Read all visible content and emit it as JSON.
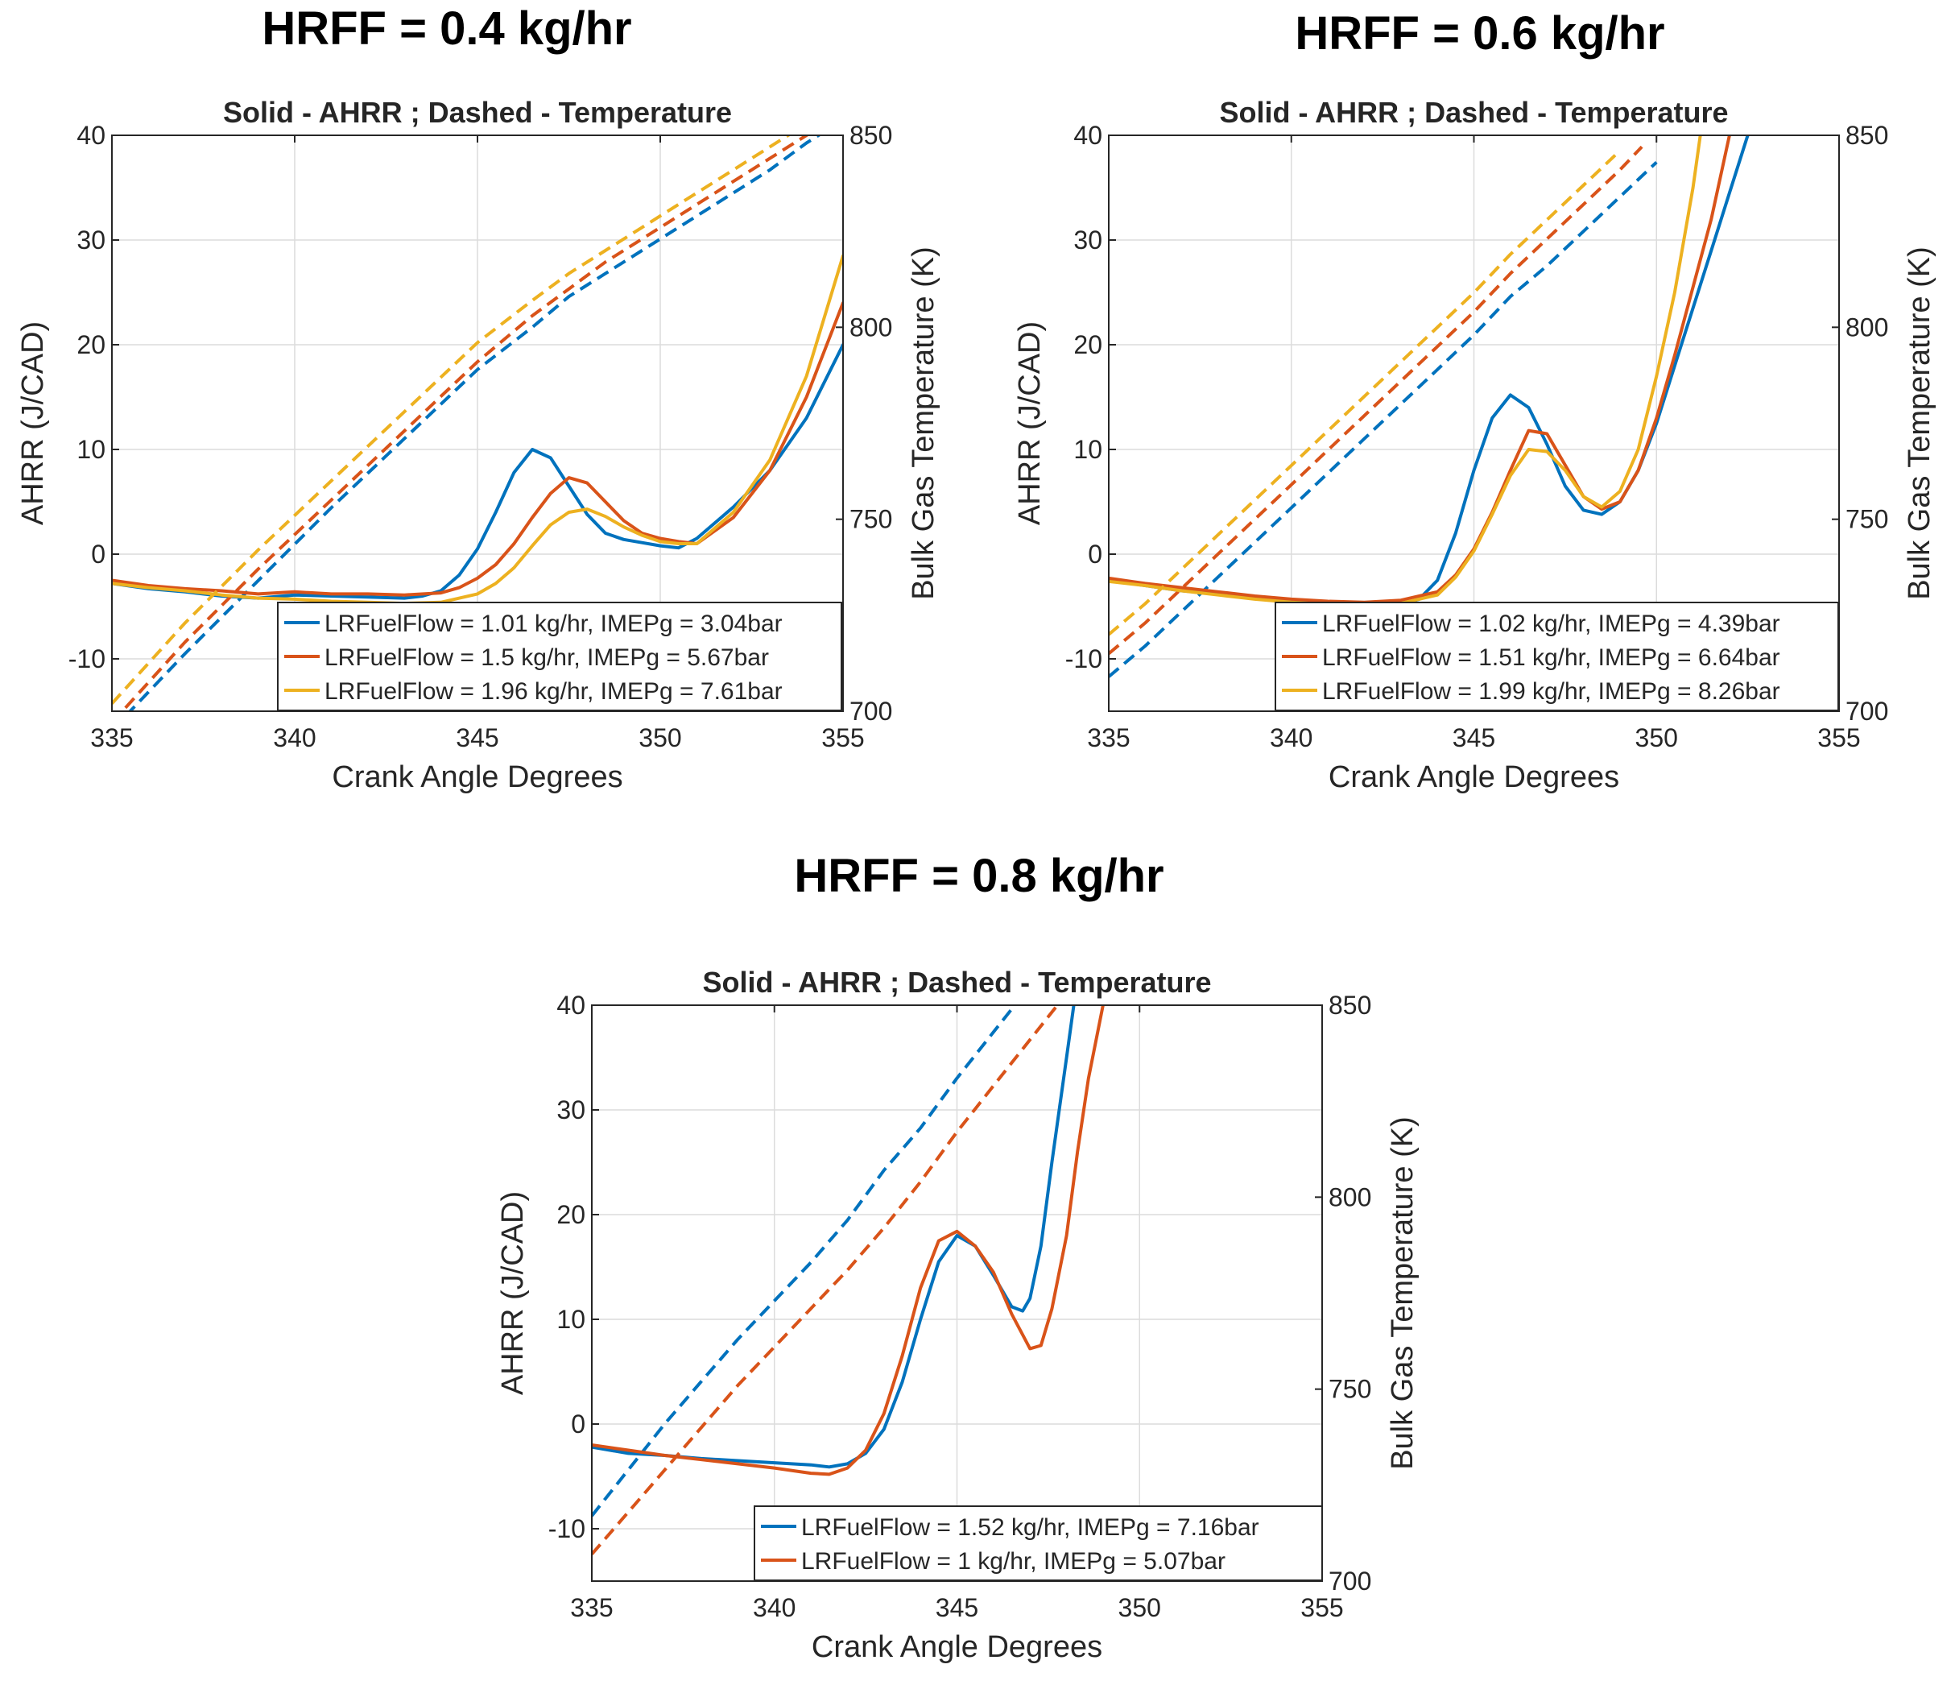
{
  "headings": [
    "HRFF = 0.4 kg/hr",
    "HRFF = 0.6 kg/hr",
    "HRFF = 0.8 kg/hr"
  ],
  "colors": {
    "blue": "#0072BD",
    "orange": "#D95319",
    "yellow": "#EDB120"
  },
  "chart_data": [
    {
      "type": "line",
      "title": "Solid - AHRR ; Dashed - Temperature",
      "xlabel": "Crank Angle Degrees",
      "ylabel": "AHRR (J/CAD)",
      "y2label": "Bulk Gas Temperature (K)",
      "xlim": [
        335,
        355
      ],
      "ylim": [
        -15,
        40
      ],
      "y2lim": [
        700,
        850
      ],
      "xticks": [
        335,
        340,
        345,
        350,
        355
      ],
      "yticks": [
        -10,
        0,
        10,
        20,
        30,
        40
      ],
      "y2ticks": [
        700,
        750,
        800,
        850
      ],
      "grid": true,
      "legend_position": "bottom-right",
      "series": [
        {
          "name": "LRFuelFlow = 1.01 kg/hr, IMEPg = 3.04bar",
          "color": "blue",
          "ahrr": {
            "x": [
              335,
              336,
              337,
              338,
              339,
              340,
              341,
              342,
              343,
              343.5,
              344,
              344.5,
              345,
              345.5,
              346,
              346.5,
              347,
              347.5,
              348,
              348.5,
              349,
              349.5,
              350,
              350.5,
              351,
              352,
              353,
              354,
              355
            ],
            "y": [
              -2.8,
              -3.3,
              -3.6,
              -4,
              -4.2,
              -3.9,
              -4,
              -4.1,
              -4.2,
              -4,
              -3.5,
              -2,
              0.5,
              4,
              7.8,
              10,
              9.2,
              6.5,
              3.8,
              2,
              1.4,
              1.1,
              0.8,
              0.6,
              1.5,
              4.5,
              8,
              13,
              20
            ]
          },
          "temp": {
            "x": [
              335,
              337,
              339,
              341,
              343,
              345,
              346.5,
              347.5,
              348.5,
              349.5,
              350.5,
              351,
              352,
              353,
              354,
              355
            ],
            "y": [
              695,
              715,
              734,
              753,
              771,
              789,
              800,
              808,
              814,
              820,
              826,
              829,
              835,
              841,
              848,
              854
            ]
          }
        },
        {
          "name": "LRFuelFlow = 1.5 kg/hr, IMEPg = 5.67bar",
          "color": "orange",
          "ahrr": {
            "x": [
              335,
              336,
              337,
              338,
              339,
              340,
              341,
              342,
              343,
              344,
              344.5,
              345,
              345.5,
              346,
              346.5,
              347,
              347.5,
              348,
              348.5,
              349,
              349.5,
              350,
              350.5,
              351,
              352,
              353,
              354,
              355
            ],
            "y": [
              -2.5,
              -3,
              -3.3,
              -3.5,
              -3.8,
              -3.6,
              -3.8,
              -3.8,
              -3.9,
              -3.7,
              -3.2,
              -2.3,
              -1,
              1,
              3.5,
              5.8,
              7.3,
              6.8,
              5,
              3.2,
              2,
              1.5,
              1.2,
              1,
              3.5,
              8,
              15,
              24
            ]
          },
          "temp": {
            "x": [
              335,
              337,
              339,
              341,
              343,
              345,
              346.5,
              347.5,
              348.5,
              349.5,
              350.5,
              351,
              352,
              353,
              354,
              355
            ],
            "y": [
              697,
              718,
              737,
              755,
              773,
              791,
              803,
              810,
              817,
              823,
              829,
              832,
              838,
              844,
              850,
              856
            ]
          }
        },
        {
          "name": "LRFuelFlow = 1.96 kg/hr, IMEPg = 7.61bar",
          "color": "yellow",
          "ahrr": {
            "x": [
              335,
              336,
              337,
              338,
              339,
              340,
              341,
              342,
              343,
              344,
              345,
              345.5,
              346,
              346.5,
              347,
              347.5,
              348,
              348.5,
              349,
              349.5,
              350,
              350.5,
              351,
              352,
              353,
              354,
              355
            ],
            "y": [
              -2.8,
              -3.2,
              -3.5,
              -3.9,
              -4.2,
              -4.3,
              -4.5,
              -4.6,
              -4.7,
              -4.6,
              -3.8,
              -2.8,
              -1.3,
              0.8,
              2.8,
              4,
              4.3,
              3.6,
              2.6,
              1.8,
              1.2,
              1,
              1,
              4,
              9,
              17,
              28.5
            ]
          },
          "temp": {
            "x": [
              335,
              337,
              339,
              341,
              343,
              345,
              346.5,
              347.5,
              348.5,
              349.5,
              350.5,
              351,
              352,
              353,
              354,
              355
            ],
            "y": [
              702,
              723,
              742,
              760,
              778,
              796,
              807,
              814,
              820,
              826,
              832,
              835,
              841,
              847,
              853,
              859
            ]
          }
        }
      ]
    },
    {
      "type": "line",
      "title": "Solid - AHRR ; Dashed - Temperature",
      "xlabel": "Crank Angle Degrees",
      "ylabel": "AHRR (J/CAD)",
      "y2label": "Bulk Gas Temperature (K)",
      "xlim": [
        335,
        355
      ],
      "ylim": [
        -15,
        40
      ],
      "y2lim": [
        700,
        850
      ],
      "xticks": [
        335,
        340,
        345,
        350,
        355
      ],
      "yticks": [
        -10,
        0,
        10,
        20,
        30,
        40
      ],
      "y2ticks": [
        700,
        750,
        800,
        850
      ],
      "grid": true,
      "legend_position": "bottom-right",
      "series": [
        {
          "name": "LRFuelFlow = 1.02 kg/hr, IMEPg = 4.39bar",
          "color": "blue",
          "ahrr": {
            "x": [
              335,
              336,
              337,
              338,
              339,
              340,
              341,
              342,
              343,
              343.5,
              344,
              344.5,
              345,
              345.5,
              346,
              346.5,
              347,
              347.5,
              348,
              348.5,
              349,
              349.5,
              350,
              350.5,
              351,
              351.5,
              352,
              352.5
            ],
            "y": [
              -2.5,
              -3,
              -3.5,
              -3.8,
              -4.2,
              -4.5,
              -4.7,
              -4.8,
              -4.8,
              -4.3,
              -2.5,
              2,
              8,
              13,
              15.2,
              14,
              10.5,
              6.5,
              4.2,
              3.8,
              5,
              8,
              12.5,
              18,
              23.5,
              29,
              34.5,
              40
            ]
          },
          "temp": {
            "x": [
              335,
              336,
              337,
              338,
              339,
              340,
              341,
              342,
              343,
              344,
              345,
              345.5,
              346,
              347,
              348,
              349,
              350
            ],
            "y": [
              709,
              717,
              726,
              735,
              744,
              753,
              762,
              771,
              780,
              789,
              798,
              803,
              808,
              816,
              825,
              834,
              843
            ]
          }
        },
        {
          "name": "LRFuelFlow = 1.51 kg/hr, IMEPg = 6.64bar",
          "color": "orange",
          "ahrr": {
            "x": [
              335,
              336,
              337,
              338,
              339,
              340,
              341,
              342,
              343,
              344,
              344.5,
              345,
              345.5,
              346,
              346.5,
              347,
              347.5,
              348,
              348.5,
              349,
              349.5,
              350,
              350.5,
              351,
              351.5,
              352
            ],
            "y": [
              -2.3,
              -2.8,
              -3.2,
              -3.6,
              -4,
              -4.3,
              -4.5,
              -4.6,
              -4.4,
              -3.6,
              -2,
              0.5,
              4,
              8,
              11.8,
              11.5,
              8.5,
              5.5,
              4.3,
              5,
              8,
              13,
              19,
              25.5,
              32,
              40
            ]
          },
          "temp": {
            "x": [
              335,
              336,
              337,
              338,
              339,
              340,
              341,
              342,
              343,
              344,
              345,
              345.5,
              346,
              347,
              348,
              349,
              349.6
            ],
            "y": [
              715,
              723,
              732,
              741,
              750,
              759,
              768,
              777,
              786,
              795,
              804,
              809,
              814,
              823,
              832,
              841,
              847
            ]
          }
        },
        {
          "name": "LRFuelFlow = 1.99 kg/hr, IMEPg = 8.26bar",
          "color": "yellow",
          "ahrr": {
            "x": [
              335,
              336,
              337,
              338,
              339,
              340,
              341,
              342,
              343,
              344,
              344.5,
              345,
              345.5,
              346,
              346.5,
              347,
              347.5,
              348,
              348.5,
              349,
              349.5,
              350,
              350.5,
              351,
              351.2
            ],
            "y": [
              -2.6,
              -3,
              -3.5,
              -3.9,
              -4.3,
              -4.6,
              -4.8,
              -4.9,
              -4.7,
              -3.9,
              -2.2,
              0.3,
              3.8,
              7.5,
              10,
              9.8,
              8,
              5.5,
              4.5,
              6,
              10,
              17,
              25,
              35,
              40
            ]
          },
          "temp": {
            "x": [
              335,
              336,
              337,
              338,
              339,
              340,
              341,
              342,
              343,
              344,
              345,
              345.5,
              346,
              347,
              348,
              349
            ],
            "y": [
              720,
              728,
              737,
              746,
              755,
              764,
              773,
              782,
              791,
              800,
              809,
              814,
              819,
              828,
              837,
              846
            ]
          }
        }
      ]
    },
    {
      "type": "line",
      "title": "Solid - AHRR ; Dashed - Temperature",
      "xlabel": "Crank Angle Degrees",
      "ylabel": "AHRR (J/CAD)",
      "y2label": "Bulk Gas Temperature (K)",
      "xlim": [
        335,
        355
      ],
      "ylim": [
        -15,
        40
      ],
      "y2lim": [
        700,
        850
      ],
      "xticks": [
        335,
        340,
        345,
        350,
        355
      ],
      "yticks": [
        -10,
        0,
        10,
        20,
        30,
        40
      ],
      "y2ticks": [
        700,
        750,
        800,
        850
      ],
      "grid": true,
      "legend_position": "bottom-right",
      "series": [
        {
          "name": "LRFuelFlow = 1.52 kg/hr, IMEPg = 7.16bar",
          "color": "blue",
          "ahrr": {
            "x": [
              335,
              336,
              337,
              338,
              339,
              340,
              341,
              341.5,
              342,
              342.5,
              343,
              343.5,
              344,
              344.5,
              345,
              345.5,
              346,
              346.5,
              346.8,
              347,
              347.3,
              347.6,
              348,
              348.2
            ],
            "y": [
              -2.2,
              -2.8,
              -3,
              -3.3,
              -3.5,
              -3.7,
              -3.9,
              -4.1,
              -3.8,
              -2.8,
              -0.5,
              4,
              10,
              15.5,
              18,
              17,
              14.2,
              11.2,
              10.8,
              12,
              17,
              25,
              35,
              40
            ]
          },
          "temp": {
            "x": [
              335,
              336,
              337,
              338,
              339,
              340,
              341,
              342,
              343,
              344,
              345,
              345.5,
              346,
              346.5,
              346.8
            ],
            "y": [
              717,
              729,
              741,
              752,
              763,
              773,
              783,
              794,
              807,
              818,
              831,
              837,
              843,
              849,
              852
            ]
          }
        },
        {
          "name": "LRFuelFlow = 1 kg/hr, IMEPg = 5.07bar",
          "color": "orange",
          "ahrr": {
            "x": [
              335,
              336,
              337,
              338,
              339,
              340,
              341,
              341.5,
              342,
              342.5,
              343,
              343.5,
              344,
              344.5,
              345,
              345.5,
              346,
              346.5,
              347,
              347.3,
              347.6,
              348,
              348.3,
              348.6,
              349
            ],
            "y": [
              -2,
              -2.5,
              -3,
              -3.4,
              -3.8,
              -4.2,
              -4.7,
              -4.8,
              -4.2,
              -2.5,
              1,
              6.5,
              13,
              17.5,
              18.4,
              17,
              14.5,
              10.5,
              7.2,
              7.5,
              11,
              18,
              26,
              33,
              40
            ]
          },
          "temp": {
            "x": [
              335,
              336,
              337,
              338,
              339,
              340,
              341,
              342,
              343,
              344,
              345,
              345.5,
              346,
              347,
              347.5,
              348
            ],
            "y": [
              707,
              718,
              729,
              740,
              751,
              761,
              771,
              781,
              792,
              804,
              817,
              823,
              829,
              841,
              847,
              853
            ]
          }
        }
      ]
    }
  ]
}
